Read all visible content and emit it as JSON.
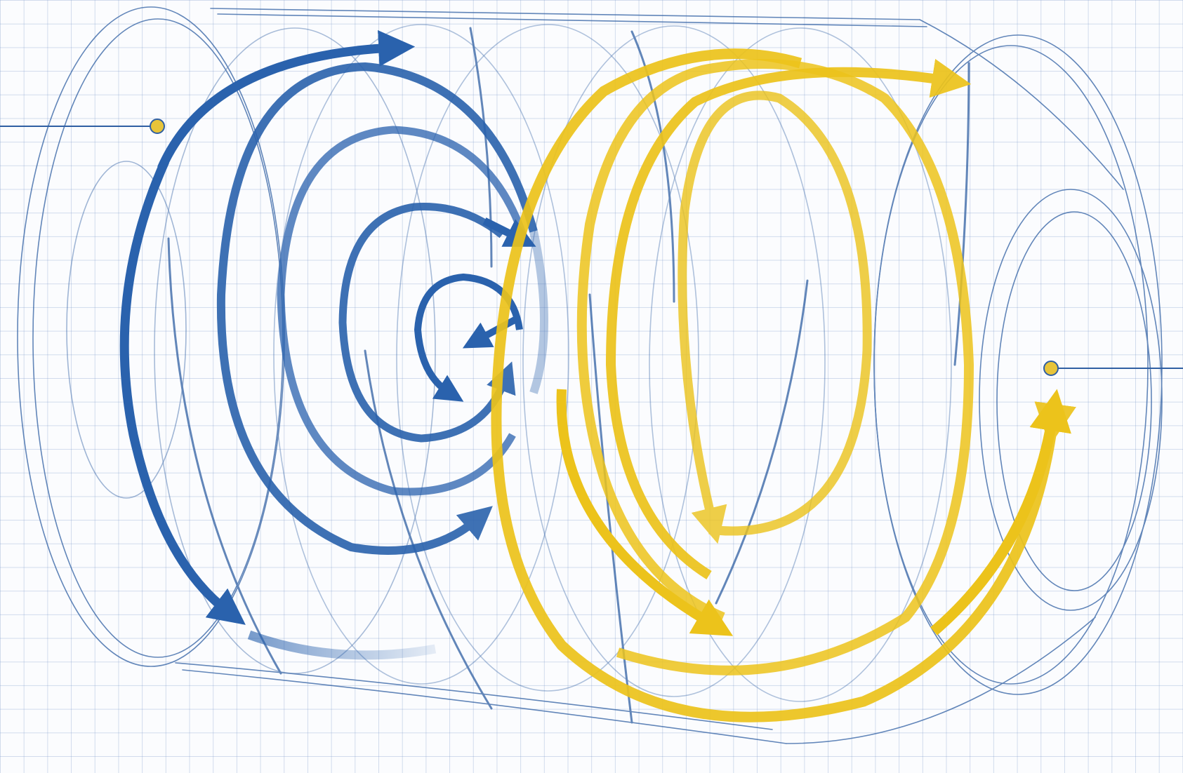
{
  "diagram": {
    "type": "cylindrical-flow-schematic",
    "colors": {
      "background": "#fbfcfe",
      "grid": "#a8bcdc",
      "outline": "#2f5fa3",
      "cold_flow": "#2a62ad",
      "warm_flow": "#ecc31b",
      "marker": "#e7c43a"
    },
    "regions": [
      {
        "name": "blue-spiral-zone",
        "color": "#2a62ad"
      },
      {
        "name": "yellow-spiral-zone",
        "color": "#ecc31b"
      }
    ],
    "markers": [
      {
        "name": "left-callout-marker",
        "side": "left"
      },
      {
        "name": "right-callout-marker",
        "side": "right"
      }
    ]
  }
}
